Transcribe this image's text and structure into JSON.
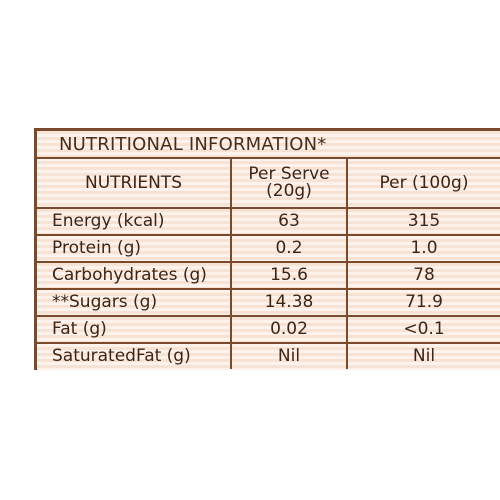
{
  "title": "NUTRITIONAL INFORMATION*",
  "headers": {
    "nutrients": "NUTRIENTS",
    "per_serve_line1": "Per Serve",
    "per_serve_line2": "(20g)",
    "per_100g": "Per (100g)"
  },
  "rows": [
    {
      "nutrient": "Energy (kcal)",
      "per_serve": "63",
      "per_100g": "315"
    },
    {
      "nutrient": "Protein (g)",
      "per_serve": "0.2",
      "per_100g": "1.0"
    },
    {
      "nutrient": "Carbohydrates (g)",
      "per_serve": "15.6",
      "per_100g": "78"
    },
    {
      "nutrient": "**Sugars (g)",
      "per_serve": "14.38",
      "per_100g": "71.9"
    },
    {
      "nutrient": "Fat (g)",
      "per_serve": "0.02",
      "per_100g": "<0.1"
    },
    {
      "nutrient": "SaturatedFat (g)",
      "per_serve": "Nil",
      "per_100g": "Nil"
    }
  ],
  "colors": {
    "border": "#7a4a2c",
    "text": "#3e2415",
    "stripe_dark": "#f7e3d5",
    "stripe_light": "#fdf3ec"
  }
}
